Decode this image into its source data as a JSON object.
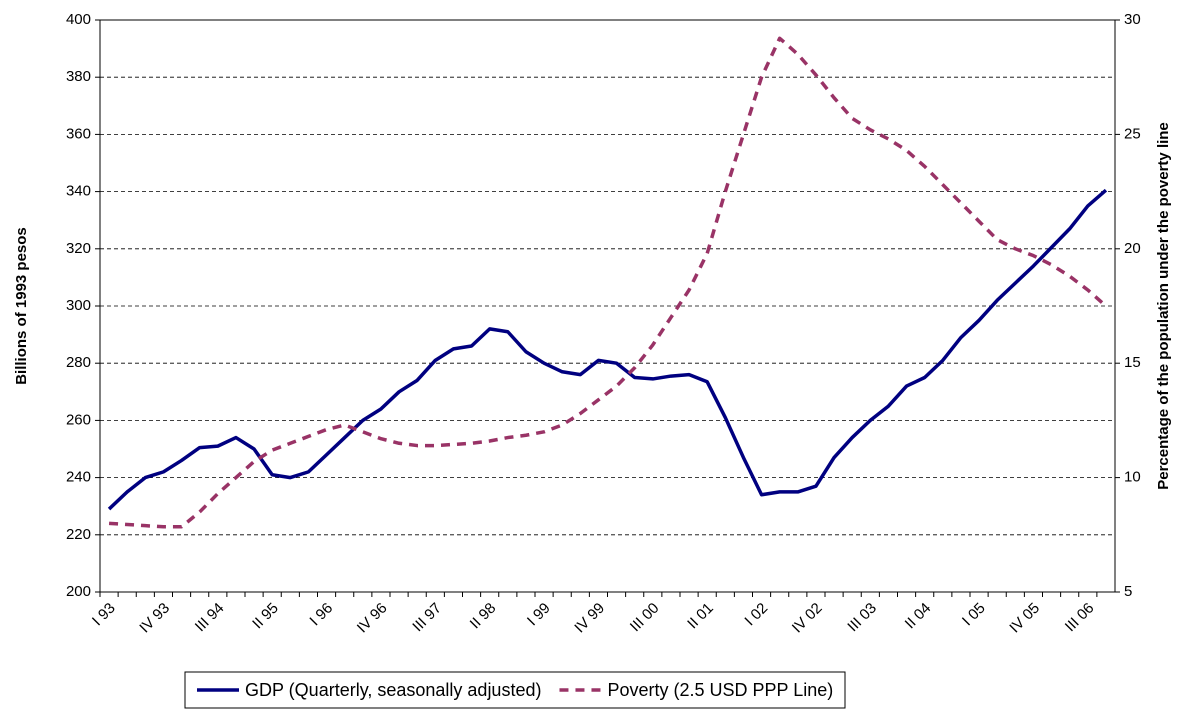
{
  "chart_data": {
    "type": "line",
    "y_label": "Billions of 1993 pesos",
    "y2_label": "Percentage of the population under the poverty line",
    "categories": [
      "I 93",
      null,
      null,
      "IV 93",
      null,
      null,
      "III 94",
      null,
      null,
      "II 95",
      null,
      null,
      "I 96",
      null,
      null,
      "IV 96",
      null,
      null,
      "III 97",
      null,
      null,
      "II 98",
      null,
      null,
      "I 99",
      null,
      null,
      "IV 99",
      null,
      null,
      "III 00",
      null,
      null,
      "II 01",
      null,
      null,
      "I 02",
      null,
      null,
      "IV 02",
      null,
      null,
      "III 03",
      null,
      null,
      "II 04",
      null,
      null,
      "I 05",
      null,
      null,
      "IV 05",
      null,
      null,
      "III 06",
      null
    ],
    "series": [
      {
        "name": "GDP (Quarterly, seasonally adjusted)",
        "color": "#000080",
        "dashed": false,
        "axis": "y",
        "values": [
          229,
          235,
          240,
          242,
          246,
          250.5,
          251,
          254,
          250,
          241,
          240,
          242,
          248,
          254,
          260,
          264,
          270,
          274,
          281,
          285,
          286,
          292,
          291,
          284,
          280,
          277,
          276,
          281,
          280,
          275,
          274.5,
          275.5,
          276,
          273.5,
          261,
          247,
          234,
          235,
          235,
          237,
          247,
          254,
          260,
          265,
          272,
          275,
          281,
          289,
          295,
          302,
          308,
          314,
          320.5,
          327,
          335,
          340.5
        ]
      },
      {
        "name": "Poverty (2.5 USD PPP Line)",
        "color": "#993366",
        "dashed": true,
        "axis": "y2",
        "values": [
          8.0,
          7.95,
          7.9,
          7.85,
          7.85,
          8.5,
          9.3,
          10.0,
          10.7,
          11.2,
          11.5,
          11.8,
          12.1,
          12.3,
          12.0,
          11.7,
          11.5,
          11.4,
          11.4,
          11.45,
          11.5,
          11.6,
          11.75,
          11.85,
          12.0,
          12.3,
          12.8,
          13.4,
          14.0,
          14.8,
          15.8,
          17.0,
          18.2,
          19.8,
          22.5,
          25.0,
          27.5,
          29.2,
          28.5,
          27.6,
          26.6,
          25.7,
          25.2,
          24.8,
          24.3,
          23.6,
          22.8,
          22.0,
          21.2,
          20.4,
          20.0,
          19.7,
          19.3,
          18.8,
          18.2,
          17.5
        ]
      }
    ],
    "ylim": [
      200,
      400
    ],
    "yticks": [
      200,
      220,
      240,
      260,
      280,
      300,
      320,
      340,
      360,
      380,
      400
    ],
    "y2lim": [
      5,
      30
    ],
    "y2ticks": [
      5,
      10,
      15,
      20,
      25,
      30
    ],
    "grid": true,
    "legend": "bottom"
  }
}
